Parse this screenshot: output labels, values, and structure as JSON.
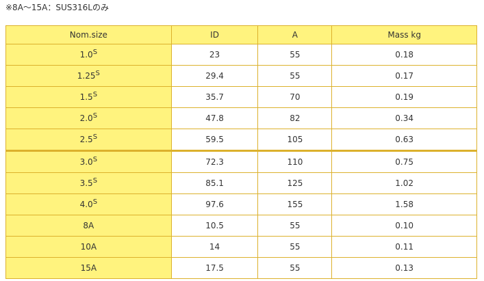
{
  "note": "※8A～15A：SUS316Lのみ",
  "colors": {
    "header_fill": "#fff37e",
    "border": "#dcb12c"
  },
  "table": {
    "headers": [
      "Nom.size",
      "ID",
      "A",
      "Mass kg"
    ],
    "rows": [
      {
        "size": "1.0",
        "sup": "S",
        "id": "23",
        "a": "55",
        "mass": "0.18"
      },
      {
        "size": "1.25",
        "sup": "S",
        "id": "29.4",
        "a": "55",
        "mass": "0.17"
      },
      {
        "size": "1.5",
        "sup": "S",
        "id": "35.7",
        "a": "70",
        "mass": "0.19"
      },
      {
        "size": "2.0",
        "sup": "S",
        "id": "47.8",
        "a": "82",
        "mass": "0.34"
      },
      {
        "size": "2.5",
        "sup": "S",
        "id": "59.5",
        "a": "105",
        "mass": "0.63"
      },
      {
        "size": "3.0",
        "sup": "S",
        "id": "72.3",
        "a": "110",
        "mass": "0.75"
      },
      {
        "size": "3.5",
        "sup": "S",
        "id": "85.1",
        "a": "125",
        "mass": "1.02"
      },
      {
        "size": "4.0",
        "sup": "S",
        "id": "97.6",
        "a": "155",
        "mass": "1.58"
      },
      {
        "size": "8A",
        "sup": "",
        "id": "10.5",
        "a": "55",
        "mass": "0.10"
      },
      {
        "size": "10A",
        "sup": "",
        "id": "14",
        "a": "55",
        "mass": "0.11"
      },
      {
        "size": "15A",
        "sup": "",
        "id": "17.5",
        "a": "55",
        "mass": "0.13"
      }
    ]
  }
}
